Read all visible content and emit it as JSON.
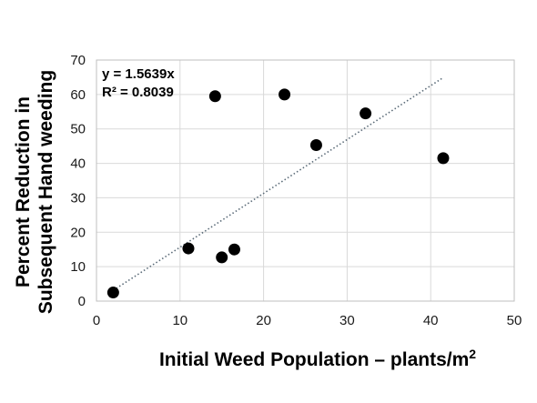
{
  "chart_data": {
    "type": "scatter",
    "xlabel": "Initial Weed Population – plants/m",
    "xlabel_sup": "2",
    "ylabel_lines": [
      "Percent Reduction in",
      "Subsequent Hand weeding"
    ],
    "xlim": [
      0,
      50
    ],
    "ylim": [
      0,
      70
    ],
    "x_ticks": [
      0,
      10,
      20,
      30,
      40,
      50
    ],
    "y_ticks": [
      0,
      10,
      20,
      30,
      40,
      50,
      60,
      70
    ],
    "x_tick_labels": [
      "0",
      "10",
      "20",
      "30",
      "40",
      "50"
    ],
    "y_tick_labels": [
      "0",
      "10",
      "20",
      "30",
      "40",
      "50",
      "60",
      "70"
    ],
    "grid": true,
    "points": [
      {
        "x": 2.0,
        "y": 2.5
      },
      {
        "x": 11.0,
        "y": 15.3
      },
      {
        "x": 14.2,
        "y": 59.5
      },
      {
        "x": 15.0,
        "y": 12.7
      },
      {
        "x": 16.5,
        "y": 15.0
      },
      {
        "x": 22.5,
        "y": 60.0
      },
      {
        "x": 26.3,
        "y": 45.3
      },
      {
        "x": 32.2,
        "y": 54.5
      },
      {
        "x": 41.5,
        "y": 41.5
      }
    ],
    "trendline": {
      "type": "linear",
      "slope": 1.5639,
      "intercept": 0,
      "x_range": [
        2,
        41.5
      ],
      "style": "dotted"
    },
    "annotations": {
      "equation": "y = 1.5639x",
      "r_squared": "R² = 0.8039"
    },
    "colors": {
      "points": "#000000",
      "trendline": "#5b6b78",
      "grid": "#d9d9d9",
      "frame": "#bfbfbf"
    }
  }
}
